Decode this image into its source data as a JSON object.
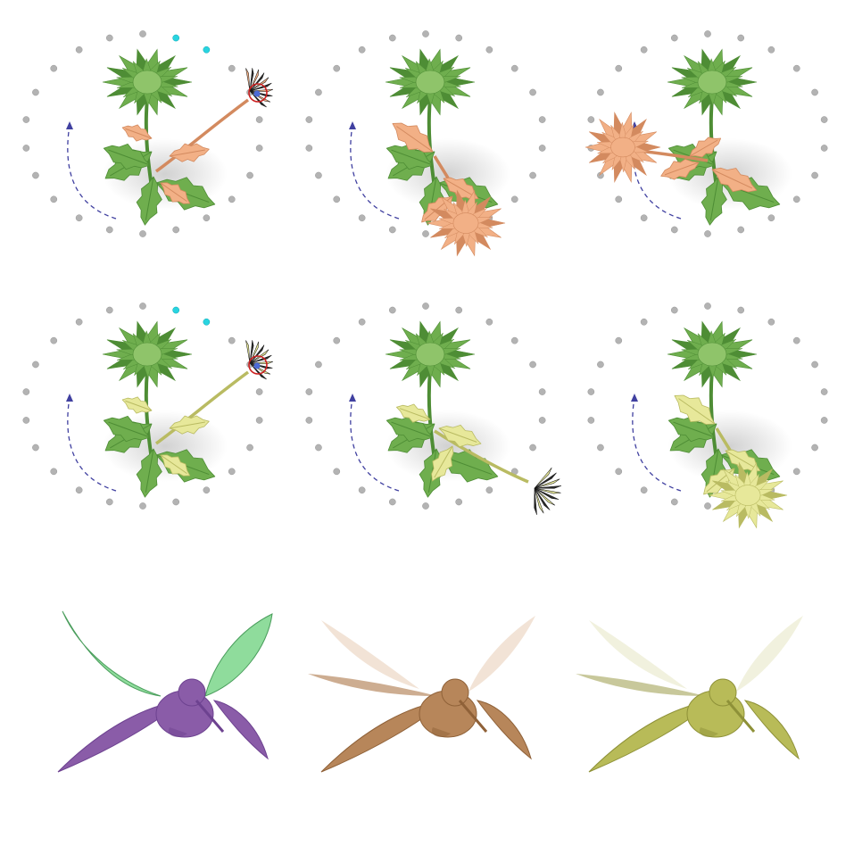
{
  "figure": {
    "rows": [
      {
        "name": "row-1",
        "panels": [
          {
            "name": "panel-r1-c1",
            "pose": "initial",
            "stem_bent": true,
            "target_marker": true,
            "target_dots": true
          },
          {
            "name": "panel-r1-c2",
            "pose": "blossom-lower-right",
            "stem_bent": false,
            "target_marker": false,
            "target_dots": false
          },
          {
            "name": "panel-r1-c3",
            "pose": "blossom-left",
            "stem_bent": false,
            "target_marker": false,
            "target_dots": false
          }
        ],
        "colors": {
          "deformed": "#f2b086",
          "deformed_dark": "#d38a5f"
        }
      },
      {
        "name": "row-2",
        "panels": [
          {
            "name": "panel-r2-c1",
            "pose": "initial",
            "stem_bent": true,
            "target_marker": true,
            "target_dots": true
          },
          {
            "name": "panel-r2-c2",
            "pose": "blossom-right-edge",
            "stem_bent": false,
            "target_marker": false,
            "target_dots": false
          },
          {
            "name": "panel-r2-c3",
            "pose": "blossom-lower-right",
            "stem_bent": false,
            "target_marker": false,
            "target_dots": false
          }
        ],
        "colors": {
          "deformed": "#e7e89a",
          "deformed_dark": "#b9bb62"
        }
      },
      {
        "name": "row-3",
        "panels": [
          {
            "name": "hummingbird-purple-green",
            "body": "#8a5ca8",
            "body_dark": "#6d4290",
            "wing_back": "#8fdc9c",
            "wing_back_dark": "#4a9d5c",
            "ghost": false
          },
          {
            "name": "hummingbird-brown",
            "body": "#b7865a",
            "body_dark": "#8f6138",
            "wing_back": "#d9b08a",
            "wing_back_dark": "#b88a62",
            "ghost": true
          },
          {
            "name": "hummingbird-olive",
            "body": "#b8bb58",
            "body_dark": "#8e9138",
            "wing_back": "#d8d8a0",
            "wing_back_dark": "#b0b070",
            "ghost": true
          }
        ]
      }
    ],
    "colors": {
      "leaf": "#6fae4e",
      "leaf_dark": "#4e8d35",
      "flower_center": "#8fc46a",
      "dot": "#b3b3b3",
      "target_dot": "#29d4e0",
      "marker_ring": "#cc2020",
      "marker_point": "#4c6bd6",
      "arrow": "#4040a0",
      "dark_petal": "#2b2b2b"
    }
  }
}
